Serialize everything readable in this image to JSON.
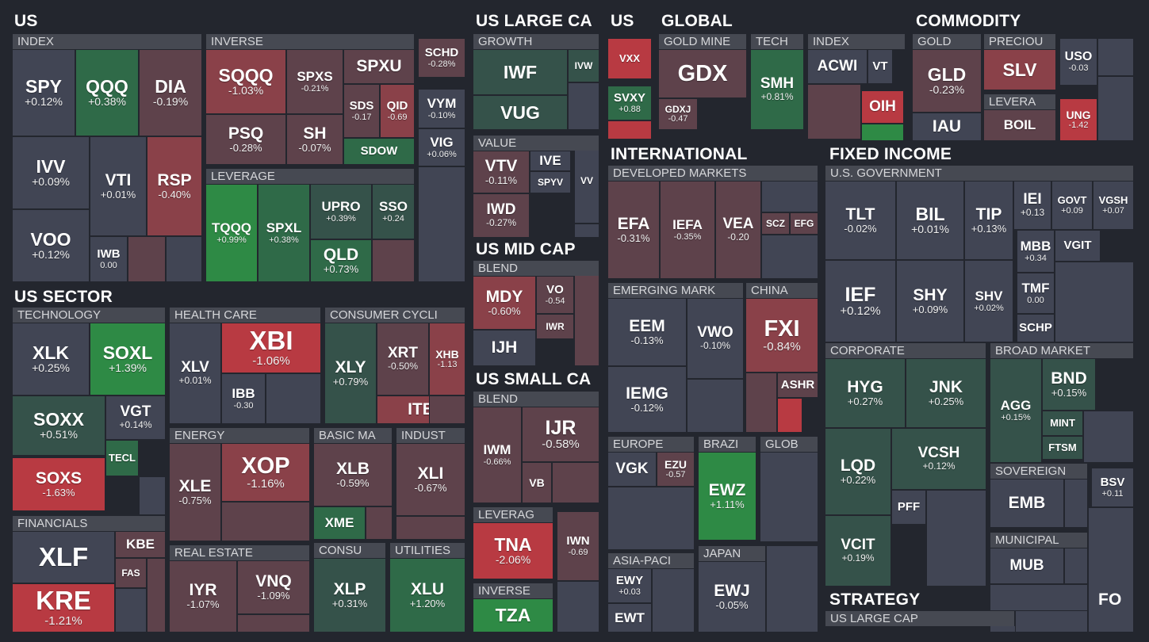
{
  "colors": {
    "background": "#23262e",
    "neutral": "#414554",
    "strong_negative": "#b83a42",
    "negative": "#8a4149",
    "mild_negative": "#5e424b",
    "mild_positive": "#35524a",
    "positive": "#2f6a48",
    "strong_positive": "#2e8a45"
  },
  "sections": [
    {
      "id": "us",
      "label": "US"
    },
    {
      "id": "us-large-cap",
      "label": "US LARGE CA"
    },
    {
      "id": "us-vol",
      "label": "US"
    },
    {
      "id": "global",
      "label": "GLOBAL"
    },
    {
      "id": "commodity",
      "label": "COMMODITY"
    },
    {
      "id": "international",
      "label": "INTERNATIONAL"
    },
    {
      "id": "fixed-income",
      "label": "FIXED INCOME"
    },
    {
      "id": "us-mid-cap",
      "label": "US MID CAP"
    },
    {
      "id": "us-small-cap",
      "label": "US SMALL CA"
    },
    {
      "id": "us-sector",
      "label": "US SECTOR"
    },
    {
      "id": "strategy",
      "label": "STRATEGY"
    },
    {
      "id": "fo",
      "label": "FO"
    }
  ],
  "subgroups": [
    {
      "id": "us-index",
      "label": "INDEX"
    },
    {
      "id": "us-inverse",
      "label": "INVERSE"
    },
    {
      "id": "us-leverage",
      "label": "LEVERAGE"
    },
    {
      "id": "lc-growth",
      "label": "GROWTH"
    },
    {
      "id": "lc-value",
      "label": "VALUE"
    },
    {
      "id": "mc-blend",
      "label": "BLEND"
    },
    {
      "id": "sc-blend",
      "label": "BLEND"
    },
    {
      "id": "sc-leverage",
      "label": "LEVERAG"
    },
    {
      "id": "sc-inverse",
      "label": "INVERSE"
    },
    {
      "id": "gl-goldmine",
      "label": "GOLD MINE"
    },
    {
      "id": "gl-tech",
      "label": "TECH"
    },
    {
      "id": "gl-index",
      "label": "INDEX"
    },
    {
      "id": "cm-gold",
      "label": "GOLD"
    },
    {
      "id": "cm-precious",
      "label": "PRECIOU"
    },
    {
      "id": "cm-leverage",
      "label": "LEVERA"
    },
    {
      "id": "in-developed",
      "label": "DEVELOPED MARKETS"
    },
    {
      "id": "in-emerging",
      "label": "EMERGING MARK"
    },
    {
      "id": "in-china",
      "label": "CHINA"
    },
    {
      "id": "in-europe",
      "label": "EUROPE"
    },
    {
      "id": "in-brazil",
      "label": "BRAZI"
    },
    {
      "id": "in-glob",
      "label": "GLOB"
    },
    {
      "id": "in-asia",
      "label": "ASIA-PACI"
    },
    {
      "id": "in-japan",
      "label": "JAPAN"
    },
    {
      "id": "fi-gov",
      "label": "U.S. GOVERNMENT"
    },
    {
      "id": "fi-corp",
      "label": "CORPORATE"
    },
    {
      "id": "fi-broad",
      "label": "BROAD MARKET"
    },
    {
      "id": "fi-sovereign",
      "label": "SOVEREIGN"
    },
    {
      "id": "fi-muni",
      "label": "MUNICIPAL"
    },
    {
      "id": "st-uslc",
      "label": "US LARGE CAP"
    },
    {
      "id": "sec-tech",
      "label": "TECHNOLOGY"
    },
    {
      "id": "sec-health",
      "label": "HEALTH CARE"
    },
    {
      "id": "sec-cons-cyc",
      "label": "CONSUMER CYCLI"
    },
    {
      "id": "sec-fin",
      "label": "FINANCIALS"
    },
    {
      "id": "sec-energy",
      "label": "ENERGY"
    },
    {
      "id": "sec-basic",
      "label": "BASIC MA"
    },
    {
      "id": "sec-indust",
      "label": "INDUST"
    },
    {
      "id": "sec-realestate",
      "label": "REAL ESTATE"
    },
    {
      "id": "sec-consu",
      "label": "CONSU"
    },
    {
      "id": "sec-util",
      "label": "UTILITIES"
    }
  ],
  "tickers": [
    {
      "ticker": "SPY",
      "change": "+0.12%"
    },
    {
      "ticker": "QQQ",
      "change": "+0.38%"
    },
    {
      "ticker": "DIA",
      "change": "-0.19%"
    },
    {
      "ticker": "IVV",
      "change": "+0.09%"
    },
    {
      "ticker": "VTI",
      "change": "+0.01%"
    },
    {
      "ticker": "RSP",
      "change": "-0.40%"
    },
    {
      "ticker": "VOO",
      "change": "+0.12%"
    },
    {
      "ticker": "IWB",
      "change": "0.00"
    },
    {
      "ticker": "SQQQ",
      "change": "-1.03%"
    },
    {
      "ticker": "SPXS",
      "change": "-0.21%"
    },
    {
      "ticker": "SPXU",
      "change": ""
    },
    {
      "ticker": "PSQ",
      "change": "-0.28%"
    },
    {
      "ticker": "SH",
      "change": "-0.07%"
    },
    {
      "ticker": "SDS",
      "change": "-0.17"
    },
    {
      "ticker": "QID",
      "change": "-0.69"
    },
    {
      "ticker": "SDOW",
      "change": ""
    },
    {
      "ticker": "SCHD",
      "change": "-0.28%"
    },
    {
      "ticker": "VYM",
      "change": "-0.10%"
    },
    {
      "ticker": "VIG",
      "change": "+0.06%"
    },
    {
      "ticker": "TQQQ",
      "change": "+0.99%"
    },
    {
      "ticker": "SPXL",
      "change": "+0.38%"
    },
    {
      "ticker": "UPRO",
      "change": "+0.39%"
    },
    {
      "ticker": "SSO",
      "change": "+0.24"
    },
    {
      "ticker": "QLD",
      "change": "+0.73%"
    },
    {
      "ticker": "IWF",
      "change": ""
    },
    {
      "ticker": "IVW",
      "change": ""
    },
    {
      "ticker": "VUG",
      "change": ""
    },
    {
      "ticker": "VTV",
      "change": "-0.11%"
    },
    {
      "ticker": "IVE",
      "change": ""
    },
    {
      "ticker": "SPYV",
      "change": ""
    },
    {
      "ticker": "VV",
      "change": ""
    },
    {
      "ticker": "IWD",
      "change": "-0.27%"
    },
    {
      "ticker": "MDY",
      "change": "-0.60%"
    },
    {
      "ticker": "VO",
      "change": "-0.54"
    },
    {
      "ticker": "IWR",
      "change": ""
    },
    {
      "ticker": "IJH",
      "change": ""
    },
    {
      "ticker": "IWM",
      "change": "-0.66%"
    },
    {
      "ticker": "IJR",
      "change": "-0.58%"
    },
    {
      "ticker": "VB",
      "change": ""
    },
    {
      "ticker": "TNA",
      "change": "-2.06%"
    },
    {
      "ticker": "IWN",
      "change": "-0.69"
    },
    {
      "ticker": "TZA",
      "change": ""
    },
    {
      "ticker": "VXX",
      "change": ""
    },
    {
      "ticker": "SVXY",
      "change": "+0.88"
    },
    {
      "ticker": "GDX",
      "change": ""
    },
    {
      "ticker": "GDXJ",
      "change": "-0.47"
    },
    {
      "ticker": "SMH",
      "change": "+0.81%"
    },
    {
      "ticker": "ACWI",
      "change": ""
    },
    {
      "ticker": "VT",
      "change": ""
    },
    {
      "ticker": "OIH",
      "change": ""
    },
    {
      "ticker": "GLD",
      "change": "-0.23%"
    },
    {
      "ticker": "IAU",
      "change": ""
    },
    {
      "ticker": "SLV",
      "change": ""
    },
    {
      "ticker": "BOIL",
      "change": ""
    },
    {
      "ticker": "UNG",
      "change": "-1.42"
    },
    {
      "ticker": "USO",
      "change": "-0.03"
    },
    {
      "ticker": "EFA",
      "change": "-0.31%"
    },
    {
      "ticker": "IEFA",
      "change": "-0.35%"
    },
    {
      "ticker": "VEA",
      "change": "-0.20"
    },
    {
      "ticker": "SCZ",
      "change": ""
    },
    {
      "ticker": "EFG",
      "change": ""
    },
    {
      "ticker": "EEM",
      "change": "-0.13%"
    },
    {
      "ticker": "VWO",
      "change": "-0.10%"
    },
    {
      "ticker": "IEMG",
      "change": "-0.12%"
    },
    {
      "ticker": "FXI",
      "change": "-0.84%"
    },
    {
      "ticker": "ASHR",
      "change": ""
    },
    {
      "ticker": "VGK",
      "change": ""
    },
    {
      "ticker": "EZU",
      "change": "-0.57"
    },
    {
      "ticker": "EWZ",
      "change": "+1.11%"
    },
    {
      "ticker": "EWY",
      "change": "+0.03"
    },
    {
      "ticker": "EWT",
      "change": ""
    },
    {
      "ticker": "EWJ",
      "change": "-0.05%"
    },
    {
      "ticker": "TLT",
      "change": "-0.02%"
    },
    {
      "ticker": "BIL",
      "change": "+0.01%"
    },
    {
      "ticker": "TIP",
      "change": "+0.13%"
    },
    {
      "ticker": "IEI",
      "change": "+0.13"
    },
    {
      "ticker": "GOVT",
      "change": "+0.09"
    },
    {
      "ticker": "VGSH",
      "change": "+0.07"
    },
    {
      "ticker": "MBB",
      "change": "+0.34"
    },
    {
      "ticker": "VGIT",
      "change": ""
    },
    {
      "ticker": "IEF",
      "change": "+0.12%"
    },
    {
      "ticker": "SHY",
      "change": "+0.09%"
    },
    {
      "ticker": "SHV",
      "change": "+0.02%"
    },
    {
      "ticker": "TMF",
      "change": "0.00"
    },
    {
      "ticker": "SCHP",
      "change": ""
    },
    {
      "ticker": "HYG",
      "change": "+0.27%"
    },
    {
      "ticker": "JNK",
      "change": "+0.25%"
    },
    {
      "ticker": "LQD",
      "change": "+0.22%"
    },
    {
      "ticker": "VCSH",
      "change": "+0.12%"
    },
    {
      "ticker": "PFF",
      "change": ""
    },
    {
      "ticker": "VCIT",
      "change": "+0.19%"
    },
    {
      "ticker": "AGG",
      "change": "+0.15%"
    },
    {
      "ticker": "BND",
      "change": "+0.15%"
    },
    {
      "ticker": "MINT",
      "change": ""
    },
    {
      "ticker": "FTSM",
      "change": ""
    },
    {
      "ticker": "EMB",
      "change": ""
    },
    {
      "ticker": "BSV",
      "change": "+0.11"
    },
    {
      "ticker": "MUB",
      "change": ""
    },
    {
      "ticker": "XLK",
      "change": "+0.25%"
    },
    {
      "ticker": "SOXL",
      "change": "+1.39%"
    },
    {
      "ticker": "SOXX",
      "change": "+0.51%"
    },
    {
      "ticker": "VGT",
      "change": "+0.14%"
    },
    {
      "ticker": "TECL",
      "change": ""
    },
    {
      "ticker": "SOXS",
      "change": "-1.63%"
    },
    {
      "ticker": "XBI",
      "change": "-1.06%"
    },
    {
      "ticker": "XLV",
      "change": "+0.01%"
    },
    {
      "ticker": "IBB",
      "change": "-0.30"
    },
    {
      "ticker": "XLY",
      "change": "+0.79%"
    },
    {
      "ticker": "XRT",
      "change": "-0.50%"
    },
    {
      "ticker": "XHB",
      "change": "-1.13"
    },
    {
      "ticker": "ITB",
      "change": ""
    },
    {
      "ticker": "XLF",
      "change": ""
    },
    {
      "ticker": "KBE",
      "change": ""
    },
    {
      "ticker": "FAS",
      "change": ""
    },
    {
      "ticker": "KRE",
      "change": "-1.21%"
    },
    {
      "ticker": "XLE",
      "change": "-0.75%"
    },
    {
      "ticker": "XOP",
      "change": "-1.16%"
    },
    {
      "ticker": "XLB",
      "change": "-0.59%"
    },
    {
      "ticker": "XME",
      "change": ""
    },
    {
      "ticker": "XLI",
      "change": "-0.67%"
    },
    {
      "ticker": "IYR",
      "change": "-1.07%"
    },
    {
      "ticker": "VNQ",
      "change": "-1.09%"
    },
    {
      "ticker": "XLP",
      "change": "+0.31%"
    },
    {
      "ticker": "XLU",
      "change": "+1.20%"
    }
  ]
}
